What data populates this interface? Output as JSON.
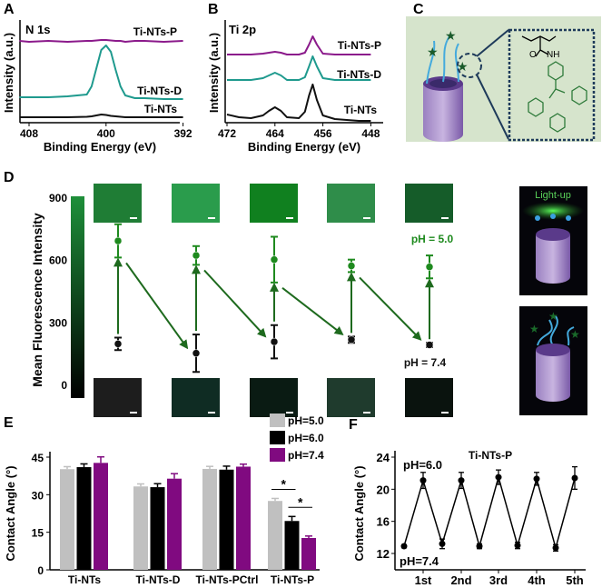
{
  "panels": {
    "a": "A",
    "b": "B",
    "c": "C",
    "d": "D",
    "e": "E",
    "f": "F"
  },
  "illustrations": {
    "c_atom_o": "O",
    "c_atom_nh": "NH",
    "d_light_up": "Light-up",
    "cylinder_color": "#6a4a9a",
    "molecule_color": "#2e7a3a",
    "background_color": "#d6e4cc"
  },
  "chart_data": [
    {
      "panel": "A",
      "type": "line",
      "title": "N 1s",
      "xlabel": "Binding Energy (eV)",
      "ylabel": "Intensity (a.u.)",
      "xlim": [
        409,
        392
      ],
      "xticks": [
        "408",
        "400",
        "392"
      ],
      "xtick_values": [
        408,
        400,
        392
      ],
      "x": [
        409,
        408,
        406,
        404,
        402,
        401.5,
        401,
        400.5,
        400,
        399.5,
        399,
        398.5,
        398,
        397,
        396,
        394,
        392
      ],
      "series": [
        {
          "name": "Ti-NTs-P",
          "color": "#8b1a8b",
          "y": [
            0.9,
            0.89,
            0.9,
            0.89,
            0.9,
            0.9,
            0.905,
            0.91,
            0.91,
            0.905,
            0.9,
            0.9,
            0.89,
            0.9,
            0.9,
            0.89,
            0.9
          ]
        },
        {
          "name": "Ti-NTs-D",
          "color": "#1f9a8e",
          "y": [
            0.28,
            0.28,
            0.28,
            0.29,
            0.31,
            0.4,
            0.6,
            0.8,
            0.85,
            0.78,
            0.58,
            0.4,
            0.3,
            0.27,
            0.27,
            0.26,
            0.26
          ]
        },
        {
          "name": "Ti-NTs",
          "color": "#111111",
          "y": [
            0.06,
            0.06,
            0.06,
            0.06,
            0.065,
            0.07,
            0.08,
            0.09,
            0.085,
            0.075,
            0.07,
            0.065,
            0.06,
            0.06,
            0.06,
            0.06,
            0.06
          ]
        }
      ]
    },
    {
      "panel": "B",
      "type": "line",
      "title": "Ti 2p",
      "xlabel": "Binding Energy (eV)",
      "ylabel": "Intensity (a.u.)",
      "xlim": [
        472,
        447
      ],
      "xticks": [
        "472",
        "464",
        "456",
        "448"
      ],
      "xtick_values": [
        472,
        464,
        456,
        448
      ],
      "x": [
        472,
        470,
        468,
        466,
        465,
        464,
        463,
        462,
        460,
        459,
        458.3,
        457.7,
        457,
        456,
        454,
        452,
        450,
        448
      ],
      "series": [
        {
          "name": "Ti-NTs-P",
          "color": "#8b1a8b",
          "y": [
            0.75,
            0.75,
            0.75,
            0.76,
            0.77,
            0.78,
            0.77,
            0.75,
            0.75,
            0.77,
            0.86,
            0.95,
            0.86,
            0.76,
            0.75,
            0.75,
            0.75,
            0.75
          ]
        },
        {
          "name": "Ti-NTs-D",
          "color": "#1f9a8e",
          "y": [
            0.47,
            0.47,
            0.47,
            0.49,
            0.52,
            0.55,
            0.52,
            0.47,
            0.47,
            0.5,
            0.62,
            0.73,
            0.62,
            0.49,
            0.47,
            0.47,
            0.47,
            0.47
          ]
        },
        {
          "name": "Ti-NTs",
          "color": "#111111",
          "y": [
            0.09,
            0.06,
            0.05,
            0.08,
            0.13,
            0.17,
            0.13,
            0.06,
            0.05,
            0.12,
            0.3,
            0.42,
            0.25,
            0.08,
            0.04,
            0.03,
            0.02,
            0.02
          ]
        }
      ]
    },
    {
      "panel": "D",
      "type": "scatter",
      "ylabel": "Mean Fluorescence Intensity",
      "ylim": [
        0,
        900
      ],
      "yticks": [
        "0",
        "300",
        "600",
        "900"
      ],
      "ytick_values": [
        0,
        300,
        600,
        900
      ],
      "cycles": 5,
      "series": [
        {
          "name": "pH = 5.0",
          "color": "#1e8a1e",
          "values": [
            690,
            620,
            600,
            570,
            565
          ],
          "errors": [
            80,
            45,
            110,
            30,
            55
          ]
        },
        {
          "name": "pH = 7.4",
          "color": "#111111",
          "values": [
            195,
            150,
            205,
            215,
            190
          ],
          "errors": [
            30,
            90,
            80,
            15,
            10
          ]
        }
      ],
      "image_colors_pH5": [
        "#1f7d35",
        "#2a9c4c",
        "#10801f",
        "#2f8d4a",
        "#155c29"
      ],
      "image_colors_pH74": [
        "#1d1d1d",
        "#0f2c23",
        "#0a1b13",
        "#1f3b2d",
        "#0a130e"
      ],
      "colorbar": [
        "#000000",
        "#1e8f3a"
      ]
    },
    {
      "panel": "E",
      "type": "bar",
      "ylabel": "Contact Angle (°)",
      "ylim": [
        0,
        47
      ],
      "yticks": [
        "0",
        "15",
        "30",
        "45"
      ],
      "ytick_values": [
        0,
        15,
        30,
        45
      ],
      "categories": [
        "Ti-NTs",
        "Ti-NTs-D",
        "Ti-NTs-PCtrl",
        "Ti-NTs-P"
      ],
      "legend_position": "top-right",
      "series": [
        {
          "name": "pH=5.0",
          "color": "#c0c0c0",
          "values": [
            40.2,
            33.3,
            40.3,
            27.5
          ],
          "errors": [
            1.0,
            1.0,
            1.0,
            1.0
          ]
        },
        {
          "name": "pH=6.0",
          "color": "#000000",
          "values": [
            41.0,
            33.0,
            40.0,
            19.5
          ],
          "errors": [
            1.3,
            1.4,
            1.4,
            1.8
          ]
        },
        {
          "name": "pH=7.4",
          "color": "#800a80",
          "values": [
            42.7,
            36.4,
            41.2,
            12.7
          ],
          "errors": [
            2.4,
            2.0,
            1.0,
            0.8
          ]
        }
      ],
      "significance": [
        {
          "label": "*",
          "between": [
            "pH=5.0",
            "pH=6.0"
          ],
          "category": "Ti-NTs-P"
        },
        {
          "label": "*",
          "between": [
            "pH=6.0",
            "pH=7.4"
          ],
          "category": "Ti-NTs-P"
        }
      ]
    },
    {
      "panel": "F",
      "type": "line",
      "title": "Ti-NTs-P",
      "ylabel": "Contact Angle (°)",
      "ylim": [
        10,
        24.5
      ],
      "yticks": [
        "12",
        "16",
        "20",
        "24"
      ],
      "ytick_values": [
        12,
        16,
        20,
        24
      ],
      "xticks": [
        "1st",
        "2nd",
        "3rd",
        "4th",
        "5th"
      ],
      "annotations": [
        {
          "text": "pH=6.0",
          "color": "#000000"
        },
        {
          "text": "pH=7.4",
          "color": "#8b1a8b"
        }
      ],
      "series": [
        {
          "name": "pH=7.4",
          "values": [
            12.9,
            13.2,
            12.9,
            13.0,
            12.7
          ],
          "errors": [
            0.2,
            0.6,
            0.3,
            0.4,
            0.4
          ]
        },
        {
          "name": "pH=6.0",
          "values": [
            21.1,
            21.1,
            21.5,
            21.3,
            21.4
          ],
          "errors": [
            1.0,
            1.0,
            0.9,
            0.8,
            1.4
          ]
        }
      ]
    }
  ]
}
